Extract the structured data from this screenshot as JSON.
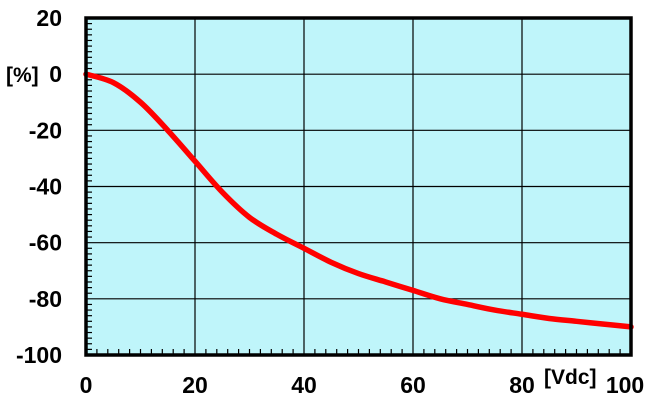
{
  "chart_data": {
    "type": "line",
    "title": "",
    "xlabel": "[Vdc]",
    "ylabel": "[%]",
    "xlim": [
      0,
      100
    ],
    "ylim": [
      -100,
      20
    ],
    "x_ticks": [
      "0",
      "20",
      "40",
      "60",
      "80",
      "100"
    ],
    "y_ticks": [
      "20",
      "0",
      "-20",
      "-40",
      "-60",
      "-80",
      "-100"
    ],
    "grid": true,
    "legend": "none",
    "colors": {
      "plot_background": "#BFF5FA",
      "grid": "#000000",
      "series": "#FF0000"
    },
    "series": [
      {
        "x": [
          0,
          5,
          10,
          15,
          20,
          25,
          30,
          35,
          40,
          45,
          50,
          55,
          60,
          65,
          70,
          75,
          80,
          85,
          90,
          95,
          100
        ],
        "y": [
          0,
          -3,
          -10,
          -20,
          -31,
          -42,
          -51,
          -57,
          -62,
          -67,
          -71,
          -74,
          -77,
          -80,
          -82,
          -84,
          -85.5,
          -87,
          -88,
          -89,
          -90
        ]
      }
    ]
  }
}
